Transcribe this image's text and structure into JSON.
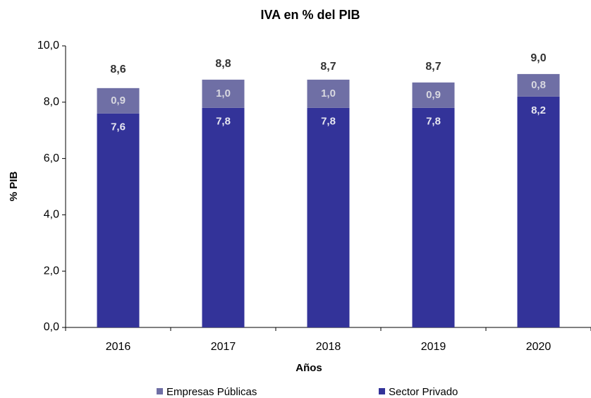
{
  "chart_data": {
    "type": "stacked_bar",
    "title": "IVA en % del PIB",
    "x_label": "Años",
    "y_label": "% PIB",
    "categories": [
      "2016",
      "2017",
      "2018",
      "2019",
      "2020"
    ],
    "series": [
      {
        "name": "Sector Privado",
        "color": "#333399",
        "values": [
          7.6,
          7.8,
          7.8,
          7.8,
          8.2
        ],
        "value_labels": [
          "7,6",
          "7,8",
          "7,8",
          "7,8",
          "8,2"
        ]
      },
      {
        "name": "Empresas Públicas",
        "color": "#6f6fa5",
        "values": [
          0.9,
          1.0,
          1.0,
          0.9,
          0.8
        ],
        "value_labels": [
          "0,9",
          "1,0",
          "1,0",
          "0,9",
          "0,8"
        ]
      }
    ],
    "totals": [
      8.6,
      8.8,
      8.7,
      8.7,
      9.0
    ],
    "total_labels": [
      "8,6",
      "8,8",
      "8,7",
      "8,7",
      "9,0"
    ],
    "ylim": [
      0,
      10
    ],
    "yticks": [
      {
        "value": 0,
        "label": "0,0"
      },
      {
        "value": 2,
        "label": "2,0"
      },
      {
        "value": 4,
        "label": "4,0"
      },
      {
        "value": 6,
        "label": "6,0"
      },
      {
        "value": 8,
        "label": "8,0"
      },
      {
        "value": 10,
        "label": "10,0"
      }
    ],
    "legend": "bottom"
  }
}
